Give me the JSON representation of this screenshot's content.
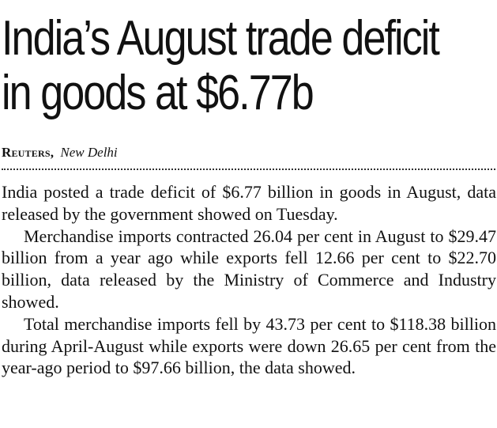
{
  "headline": {
    "line1": "India’s August trade deficit",
    "line2": "in goods at $6.77b"
  },
  "byline": {
    "agency": "Reuters,",
    "location": "New Delhi"
  },
  "body": {
    "paragraphs": [
      "India posted a trade deficit of $6.77 billion in goods in August, data released by the government showed on Tuesday.",
      "Merchandise imports contracted 26.04 per cent in August to $29.47 billion from a year ago while exports fell 12.66 per cent to $22.70 billion, data released by the Ministry of Commerce and Industry showed.",
      "Total merchandise imports fell by 43.73 per cent to $118.38 billion during April-August while exports were down 26.65 per cent from the year-ago period to $97.66 billion, the data showed."
    ]
  }
}
